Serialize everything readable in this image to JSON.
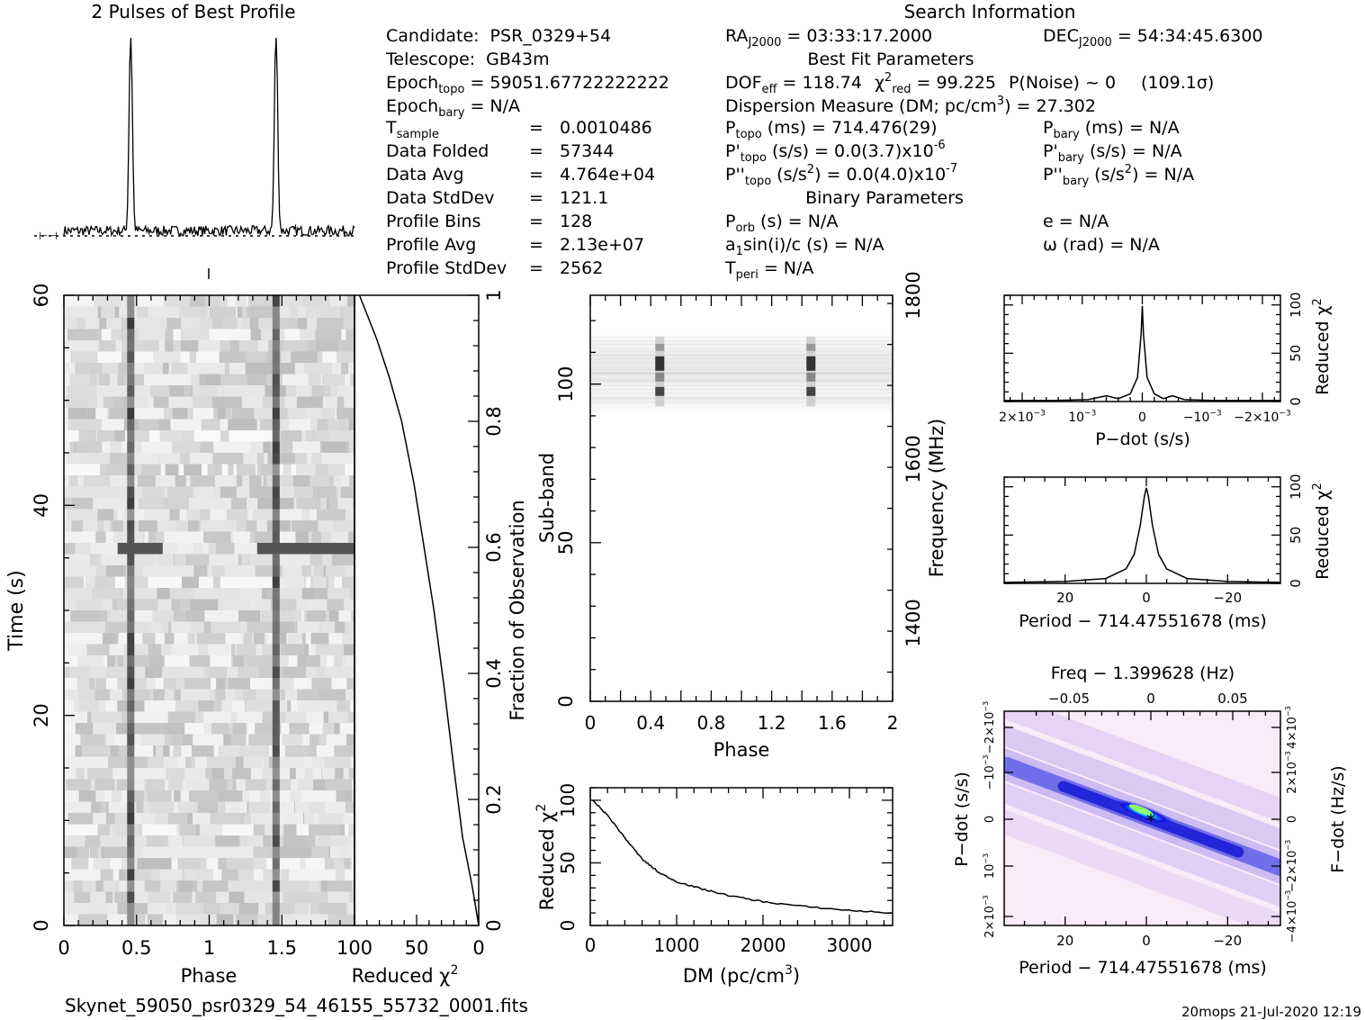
{
  "titles": {
    "profile": "2 Pulses of Best Profile",
    "search_info": "Search Information",
    "best_fit": "Best Fit Parameters",
    "binary": "Binary Parameters"
  },
  "left_info": {
    "candidate_label": "Candidate:",
    "candidate": "PSR_0329+54",
    "telescope_label": "Telescope:",
    "telescope": "GB43m",
    "epoch_topo_label": "Epoch",
    "epoch_topo_sub": "topo",
    "epoch_topo": "= 59051.67722222222",
    "epoch_bary_label": "Epoch",
    "epoch_bary_sub": "bary",
    "epoch_bary": "= N/A",
    "tsample_label": "T",
    "tsample_sub": "sample",
    "tsample": "0.0010486",
    "data_folded_label": "Data Folded",
    "data_folded": "57344",
    "data_avg_label": "Data Avg",
    "data_avg": "4.764e+04",
    "data_std_label": "Data StdDev",
    "data_std": "121.1",
    "profile_bins_label": "Profile Bins",
    "profile_bins": "128",
    "profile_avg_label": "Profile Avg",
    "profile_avg": "2.13e+07",
    "profile_std_label": "Profile StdDev",
    "profile_std": "2562",
    "eq": "="
  },
  "mid_info": {
    "ra_label": "RA",
    "ra_sub": "J2000",
    "ra": "= 03:33:17.2000",
    "dof_label": "DOF",
    "dof_sub": "eff",
    "dof": "= 118.74",
    "chi_label": "χ",
    "chi_sup": "2",
    "chi_sub": "red",
    "chi": "= 99.225",
    "pnoise": "P(Noise) ~ 0",
    "sigma": "(109.1σ)",
    "dm_text": "Dispersion Measure (DM; pc/cm",
    "dm_sup": "3",
    "dm_value": ") = 27.302",
    "ptopo_label": "P",
    "ptopo_sub": "topo",
    "ptopo": "(ms) =  714.476(29)",
    "pdtopo_label": "P'",
    "pdtopo_sub": "topo",
    "pdtopo": "(s/s) = 0.0(3.7)x10",
    "pdtopo_sup": "-6",
    "pddtopo_label": "P''",
    "pddtopo_sub": "topo",
    "pddtopo": "(s/s",
    "pddtopo_sup1": "2",
    "pddtopo_mid": ") = 0.0(4.0)x10",
    "pddtopo_sup": "-7",
    "porb_label": "P",
    "porb_sub": "orb",
    "porb": "(s) = N/A",
    "a1_label": "a",
    "a1_sub": "1",
    "a1": "sin(i)/c (s) = N/A",
    "tperi_label": "T",
    "tperi_sub": "peri",
    "tperi": "= N/A"
  },
  "right_info": {
    "dec_label": "DEC",
    "dec_sub": "J2000",
    "dec": "= 54:34:45.6300",
    "pbary_label": "P",
    "pbary_sub": "bary",
    "pbary": "(ms) = N/A",
    "pdbary_label": "P'",
    "pdbary_sub": "bary",
    "pdbary": "(s/s) = N/A",
    "pddbary_label": "P''",
    "pddbary_sub": "bary",
    "pddbary": "(s/s",
    "pddbary_sup": "2",
    "pddbary_end": ") = N/A",
    "e": "e = N/A",
    "omega": "ω (rad) = N/A"
  },
  "footer": {
    "filename": "Skynet_59050_psr0329_54_46155_55732_0001.fits",
    "stamp": "20mops 21-Jul-2020 12:19"
  },
  "chart_data": [
    {
      "type": "line",
      "id": "profile",
      "title": "2 Pulses of Best Profile",
      "x": "phase 0-2",
      "peaks_phase": [
        0.46,
        1.46
      ],
      "peak_height": 1.0,
      "baseline": 0.06
    },
    {
      "type": "heatmap",
      "id": "time-phase",
      "xlabel": "Phase",
      "ylabel": "Time (s)",
      "x_ticks": [
        "0",
        "0.5",
        "1",
        "1.5"
      ],
      "x_range": [
        0,
        2
      ],
      "y_ticks": [
        "0",
        "20",
        "40",
        "60"
      ],
      "y_range": [
        0,
        60
      ],
      "pulse_phases": [
        0.46,
        1.46
      ],
      "bright_band_time": 36
    },
    {
      "type": "line",
      "id": "cumulative-chi",
      "xlabel": "Reduced χ",
      "xlabel_sup": "2",
      "ylabel": "Fraction of Observation",
      "x_ticks": [
        "100",
        "50",
        "0"
      ],
      "x_range": [
        100,
        0
      ],
      "y_ticks": [
        "0",
        "0.2",
        "0.4",
        "0.6",
        "0.8",
        "1"
      ],
      "y_range": [
        0,
        1
      ],
      "points": [
        [
          0,
          0
        ],
        [
          5,
          0.06
        ],
        [
          13,
          0.14
        ],
        [
          20,
          0.25
        ],
        [
          28,
          0.38
        ],
        [
          36,
          0.5
        ],
        [
          44,
          0.6
        ],
        [
          52,
          0.7
        ],
        [
          62,
          0.8
        ],
        [
          72,
          0.87
        ],
        [
          82,
          0.93
        ],
        [
          90,
          0.97
        ],
        [
          96,
          1.0
        ]
      ]
    },
    {
      "type": "heatmap",
      "id": "subband-phase",
      "xlabel": "Phase",
      "ylabel": "Sub-band",
      "ylabel2": "Frequency (MHz)",
      "x_ticks": [
        "0",
        "0.4",
        "0.8",
        "1.2",
        "1.6",
        "2"
      ],
      "x_range": [
        0,
        2
      ],
      "y_ticks": [
        "0",
        "50",
        "100"
      ],
      "y_range": [
        0,
        128
      ],
      "y2_ticks": [
        "1400",
        "1600",
        "1800"
      ],
      "active_subbands": [
        93,
        115
      ],
      "pulse_phases": [
        0.46,
        1.46
      ]
    },
    {
      "type": "line",
      "id": "dm-chi",
      "xlabel": "DM (pc/cm",
      "xlabel_sup": "3",
      "xlabel_end": ")",
      "ylabel": "Reduced χ",
      "ylabel_sup": "2",
      "x_ticks": [
        "0",
        "1000",
        "2000",
        "3000"
      ],
      "x_range": [
        0,
        3500
      ],
      "y_ticks": [
        "0",
        "50",
        "100"
      ],
      "y_range": [
        0,
        110
      ],
      "points": [
        [
          27,
          100
        ],
        [
          200,
          88
        ],
        [
          400,
          70
        ],
        [
          600,
          53
        ],
        [
          800,
          42
        ],
        [
          1000,
          35
        ],
        [
          1300,
          29
        ],
        [
          1600,
          24
        ],
        [
          2000,
          19
        ],
        [
          2500,
          15
        ],
        [
          3000,
          12
        ],
        [
          3500,
          10
        ]
      ]
    },
    {
      "type": "line",
      "id": "pdot-chi",
      "xlabel": "P−dot (s/s)",
      "ylabel": "Reduced χ",
      "ylabel_sup": "2",
      "x_ticks": [
        "2×10",
        "10",
        "0",
        "−10",
        "−2×10"
      ],
      "x_tick_sup": "−3",
      "y_ticks": [
        "0",
        "50",
        "100"
      ],
      "y_range": [
        0,
        110
      ],
      "points": [
        [
          -2.3,
          1
        ],
        [
          -1.5,
          1
        ],
        [
          -0.9,
          2
        ],
        [
          -0.6,
          6
        ],
        [
          -0.4,
          3
        ],
        [
          -0.2,
          8
        ],
        [
          -0.08,
          25
        ],
        [
          -0.02,
          70
        ],
        [
          0,
          99
        ],
        [
          0.02,
          70
        ],
        [
          0.08,
          25
        ],
        [
          0.2,
          8
        ],
        [
          0.35,
          3
        ],
        [
          0.5,
          6
        ],
        [
          0.7,
          2
        ],
        [
          1.2,
          1
        ],
        [
          2.3,
          1
        ]
      ]
    },
    {
      "type": "line",
      "id": "period-chi",
      "xlabel": "Period − 714.47551678 (ms)",
      "ylabel": "Reduced χ",
      "ylabel_sup": "2",
      "x_ticks": [
        "20",
        "0",
        "−20"
      ],
      "x_range": [
        35,
        -33
      ],
      "y_ticks": [
        "0",
        "50",
        "100"
      ],
      "y_range": [
        0,
        110
      ],
      "points": [
        [
          35,
          1
        ],
        [
          20,
          2
        ],
        [
          10,
          5
        ],
        [
          5,
          15
        ],
        [
          3,
          30
        ],
        [
          1.5,
          60
        ],
        [
          0.5,
          90
        ],
        [
          0,
          99
        ],
        [
          -0.5,
          90
        ],
        [
          -1.5,
          60
        ],
        [
          -3,
          30
        ],
        [
          -5,
          15
        ],
        [
          -10,
          5
        ],
        [
          -20,
          2
        ],
        [
          -33,
          1
        ]
      ]
    },
    {
      "type": "heatmap",
      "id": "period-pdot",
      "title": "Freq − 1.399628 (Hz)",
      "xlabel": "Period − 714.47551678 (ms)",
      "ylabel": "P−dot (s/s)",
      "ylabel2": "F−dot (Hz/s)",
      "x_ticks": [
        "20",
        "0",
        "−20"
      ],
      "x_range": [
        35,
        -33
      ],
      "top_ticks": [
        "−0.05",
        "0",
        "0.05"
      ],
      "left_ticks": [
        "2×10",
        "10",
        "0",
        "−10",
        "−2×10"
      ],
      "left_tick_sup": "−3",
      "right_ticks": [
        "−4×10",
        "−2×10",
        "0",
        "2×10",
        "4×10"
      ],
      "right_tick_sup": "−3"
    }
  ]
}
